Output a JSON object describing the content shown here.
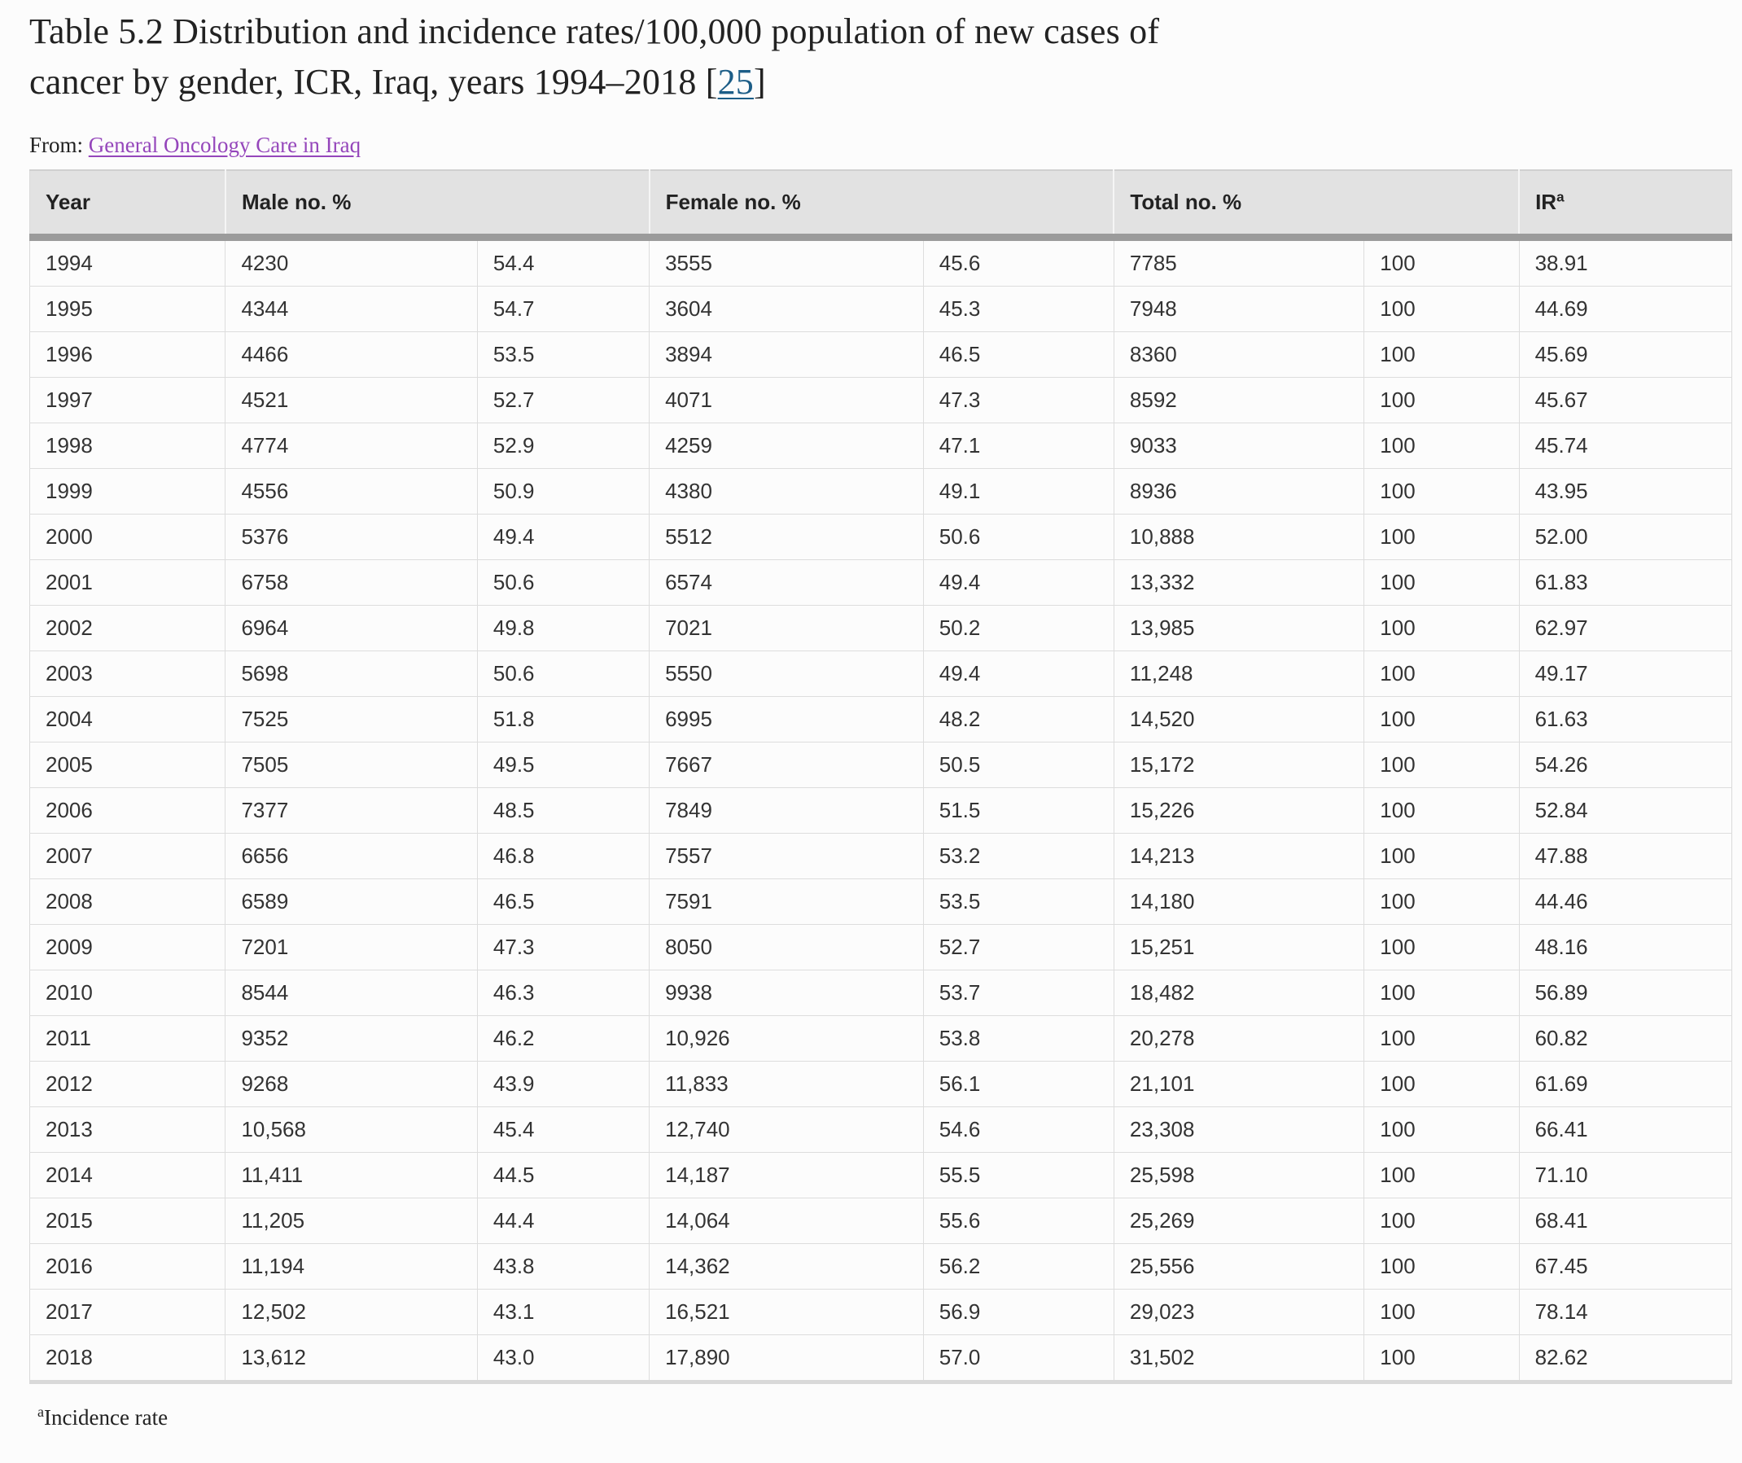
{
  "title": {
    "line1": "Table 5.2 Distribution and incidence rates/100,000 population of new cases of",
    "line2_before_link": "cancer by gender, ICR, Iraq, years 1994–2018 [",
    "citation_link": "25",
    "line2_after_link": "]"
  },
  "source_line": {
    "prefix": "From: ",
    "link_text": "General Oncology Care in Iraq"
  },
  "table": {
    "headers": [
      {
        "label": "Year"
      },
      {
        "label": "Male no. %"
      },
      {
        "label": "Female no. %"
      },
      {
        "label": "Total no. %"
      },
      {
        "label": "IR",
        "sup": "a"
      }
    ],
    "column_semantics": [
      "year",
      "male-no",
      "male-pct",
      "female-no",
      "female-pct",
      "total-no",
      "total-pct",
      "ir"
    ],
    "rows": [
      [
        "1994",
        "4230",
        "54.4",
        "3555",
        "45.6",
        "7785",
        "100",
        "38.91"
      ],
      [
        "1995",
        "4344",
        "54.7",
        "3604",
        "45.3",
        "7948",
        "100",
        "44.69"
      ],
      [
        "1996",
        "4466",
        "53.5",
        "3894",
        "46.5",
        "8360",
        "100",
        "45.69"
      ],
      [
        "1997",
        "4521",
        "52.7",
        "4071",
        "47.3",
        "8592",
        "100",
        "45.67"
      ],
      [
        "1998",
        "4774",
        "52.9",
        "4259",
        "47.1",
        "9033",
        "100",
        "45.74"
      ],
      [
        "1999",
        "4556",
        "50.9",
        "4380",
        "49.1",
        "8936",
        "100",
        "43.95"
      ],
      [
        "2000",
        "5376",
        "49.4",
        "5512",
        "50.6",
        "10,888",
        "100",
        "52.00"
      ],
      [
        "2001",
        "6758",
        "50.6",
        "6574",
        "49.4",
        "13,332",
        "100",
        "61.83"
      ],
      [
        "2002",
        "6964",
        "49.8",
        "7021",
        "50.2",
        "13,985",
        "100",
        "62.97"
      ],
      [
        "2003",
        "5698",
        "50.6",
        "5550",
        "49.4",
        "11,248",
        "100",
        "49.17"
      ],
      [
        "2004",
        "7525",
        "51.8",
        "6995",
        "48.2",
        "14,520",
        "100",
        "61.63"
      ],
      [
        "2005",
        "7505",
        "49.5",
        "7667",
        "50.5",
        "15,172",
        "100",
        "54.26"
      ],
      [
        "2006",
        "7377",
        "48.5",
        "7849",
        "51.5",
        "15,226",
        "100",
        "52.84"
      ],
      [
        "2007",
        "6656",
        "46.8",
        "7557",
        "53.2",
        "14,213",
        "100",
        "47.88"
      ],
      [
        "2008",
        "6589",
        "46.5",
        "7591",
        "53.5",
        "14,180",
        "100",
        "44.46"
      ],
      [
        "2009",
        "7201",
        "47.3",
        "8050",
        "52.7",
        "15,251",
        "100",
        "48.16"
      ],
      [
        "2010",
        "8544",
        "46.3",
        "9938",
        "53.7",
        "18,482",
        "100",
        "56.89"
      ],
      [
        "2011",
        "9352",
        "46.2",
        "10,926",
        "53.8",
        "20,278",
        "100",
        "60.82"
      ],
      [
        "2012",
        "9268",
        "43.9",
        "11,833",
        "56.1",
        "21,101",
        "100",
        "61.69"
      ],
      [
        "2013",
        "10,568",
        "45.4",
        "12,740",
        "54.6",
        "23,308",
        "100",
        "66.41"
      ],
      [
        "2014",
        "11,411",
        "44.5",
        "14,187",
        "55.5",
        "25,598",
        "100",
        "71.10"
      ],
      [
        "2015",
        "11,205",
        "44.4",
        "14,064",
        "55.6",
        "25,269",
        "100",
        "68.41"
      ],
      [
        "2016",
        "11,194",
        "43.8",
        "14,362",
        "56.2",
        "25,556",
        "100",
        "67.45"
      ],
      [
        "2017",
        "12,502",
        "43.1",
        "16,521",
        "56.9",
        "29,023",
        "100",
        "78.14"
      ],
      [
        "2018",
        "13,612",
        "43.0",
        "17,890",
        "57.0",
        "31,502",
        "100",
        "82.62"
      ]
    ]
  },
  "footnote": {
    "sup": "a",
    "text": "Incidence rate"
  },
  "colors": {
    "page_background": "#fcfcfc",
    "header_background": "#e2e2e2",
    "header_divider_band": "#9b9b9b",
    "row_border": "#dddddd",
    "citation_link": "#1c5d87",
    "source_link": "#9546bb",
    "text": "#333333",
    "title_text": "#222222"
  }
}
